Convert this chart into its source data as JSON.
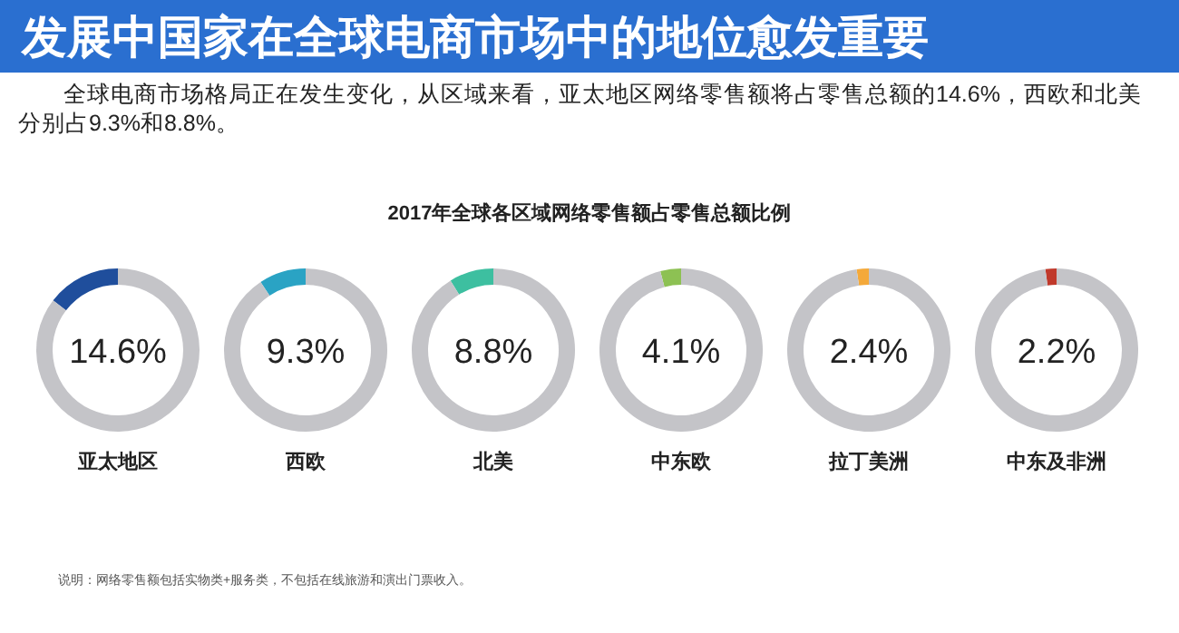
{
  "chart_data": [
    {
      "type": "other",
      "title": "发展中国家在全球电商市场中的地位愈发重要",
      "subtitle": "全球电商市场格局正在发生变化，从区域来看，亚太地区网络零售额将占零售总额的14.6%，西欧和北美分别占9.3%和8.8%。",
      "annotations": [
        "2017年全球各区域网络零售额占零售总额比例",
        "说明：网络零售额包括实物类+服务类，不包括在线旅游和演出门票收入。"
      ]
    },
    {
      "type": "donut",
      "xlabel": "亚太地区",
      "categories": [
        null,
        null
      ],
      "values": [
        14.6,
        85.4
      ],
      "colors": [
        "#1f4e9c",
        "#c4c4c8"
      ],
      "annotations": [
        "14.6%"
      ]
    },
    {
      "type": "donut",
      "xlabel": "西欧",
      "categories": [
        null,
        null
      ],
      "values": [
        9.3,
        90.7
      ],
      "colors": [
        "#2aa3c4",
        "#c4c4c8"
      ],
      "annotations": [
        "9.3%"
      ]
    },
    {
      "type": "donut",
      "xlabel": "北美",
      "categories": [
        null,
        null
      ],
      "values": [
        8.8,
        91.2
      ],
      "colors": [
        "#3dbfa0",
        "#c4c4c8"
      ],
      "annotations": [
        "8.8%"
      ]
    },
    {
      "type": "donut",
      "xlabel": "中东欧",
      "categories": [
        null,
        null
      ],
      "values": [
        4.1,
        95.9
      ],
      "colors": [
        "#8dc153",
        "#c4c4c8"
      ],
      "annotations": [
        "4.1%"
      ]
    },
    {
      "type": "donut",
      "xlabel": "拉丁美洲",
      "categories": [
        null,
        null
      ],
      "values": [
        2.4,
        97.6
      ],
      "colors": [
        "#f4a93a",
        "#c4c4c8"
      ],
      "annotations": [
        "2.4%"
      ]
    },
    {
      "type": "donut",
      "xlabel": "中东及非洲",
      "categories": [
        null,
        null
      ],
      "values": [
        2.2,
        97.8
      ],
      "colors": [
        "#c0392b",
        "#c4c4c8"
      ],
      "annotations": [
        "2.2%"
      ]
    }
  ]
}
